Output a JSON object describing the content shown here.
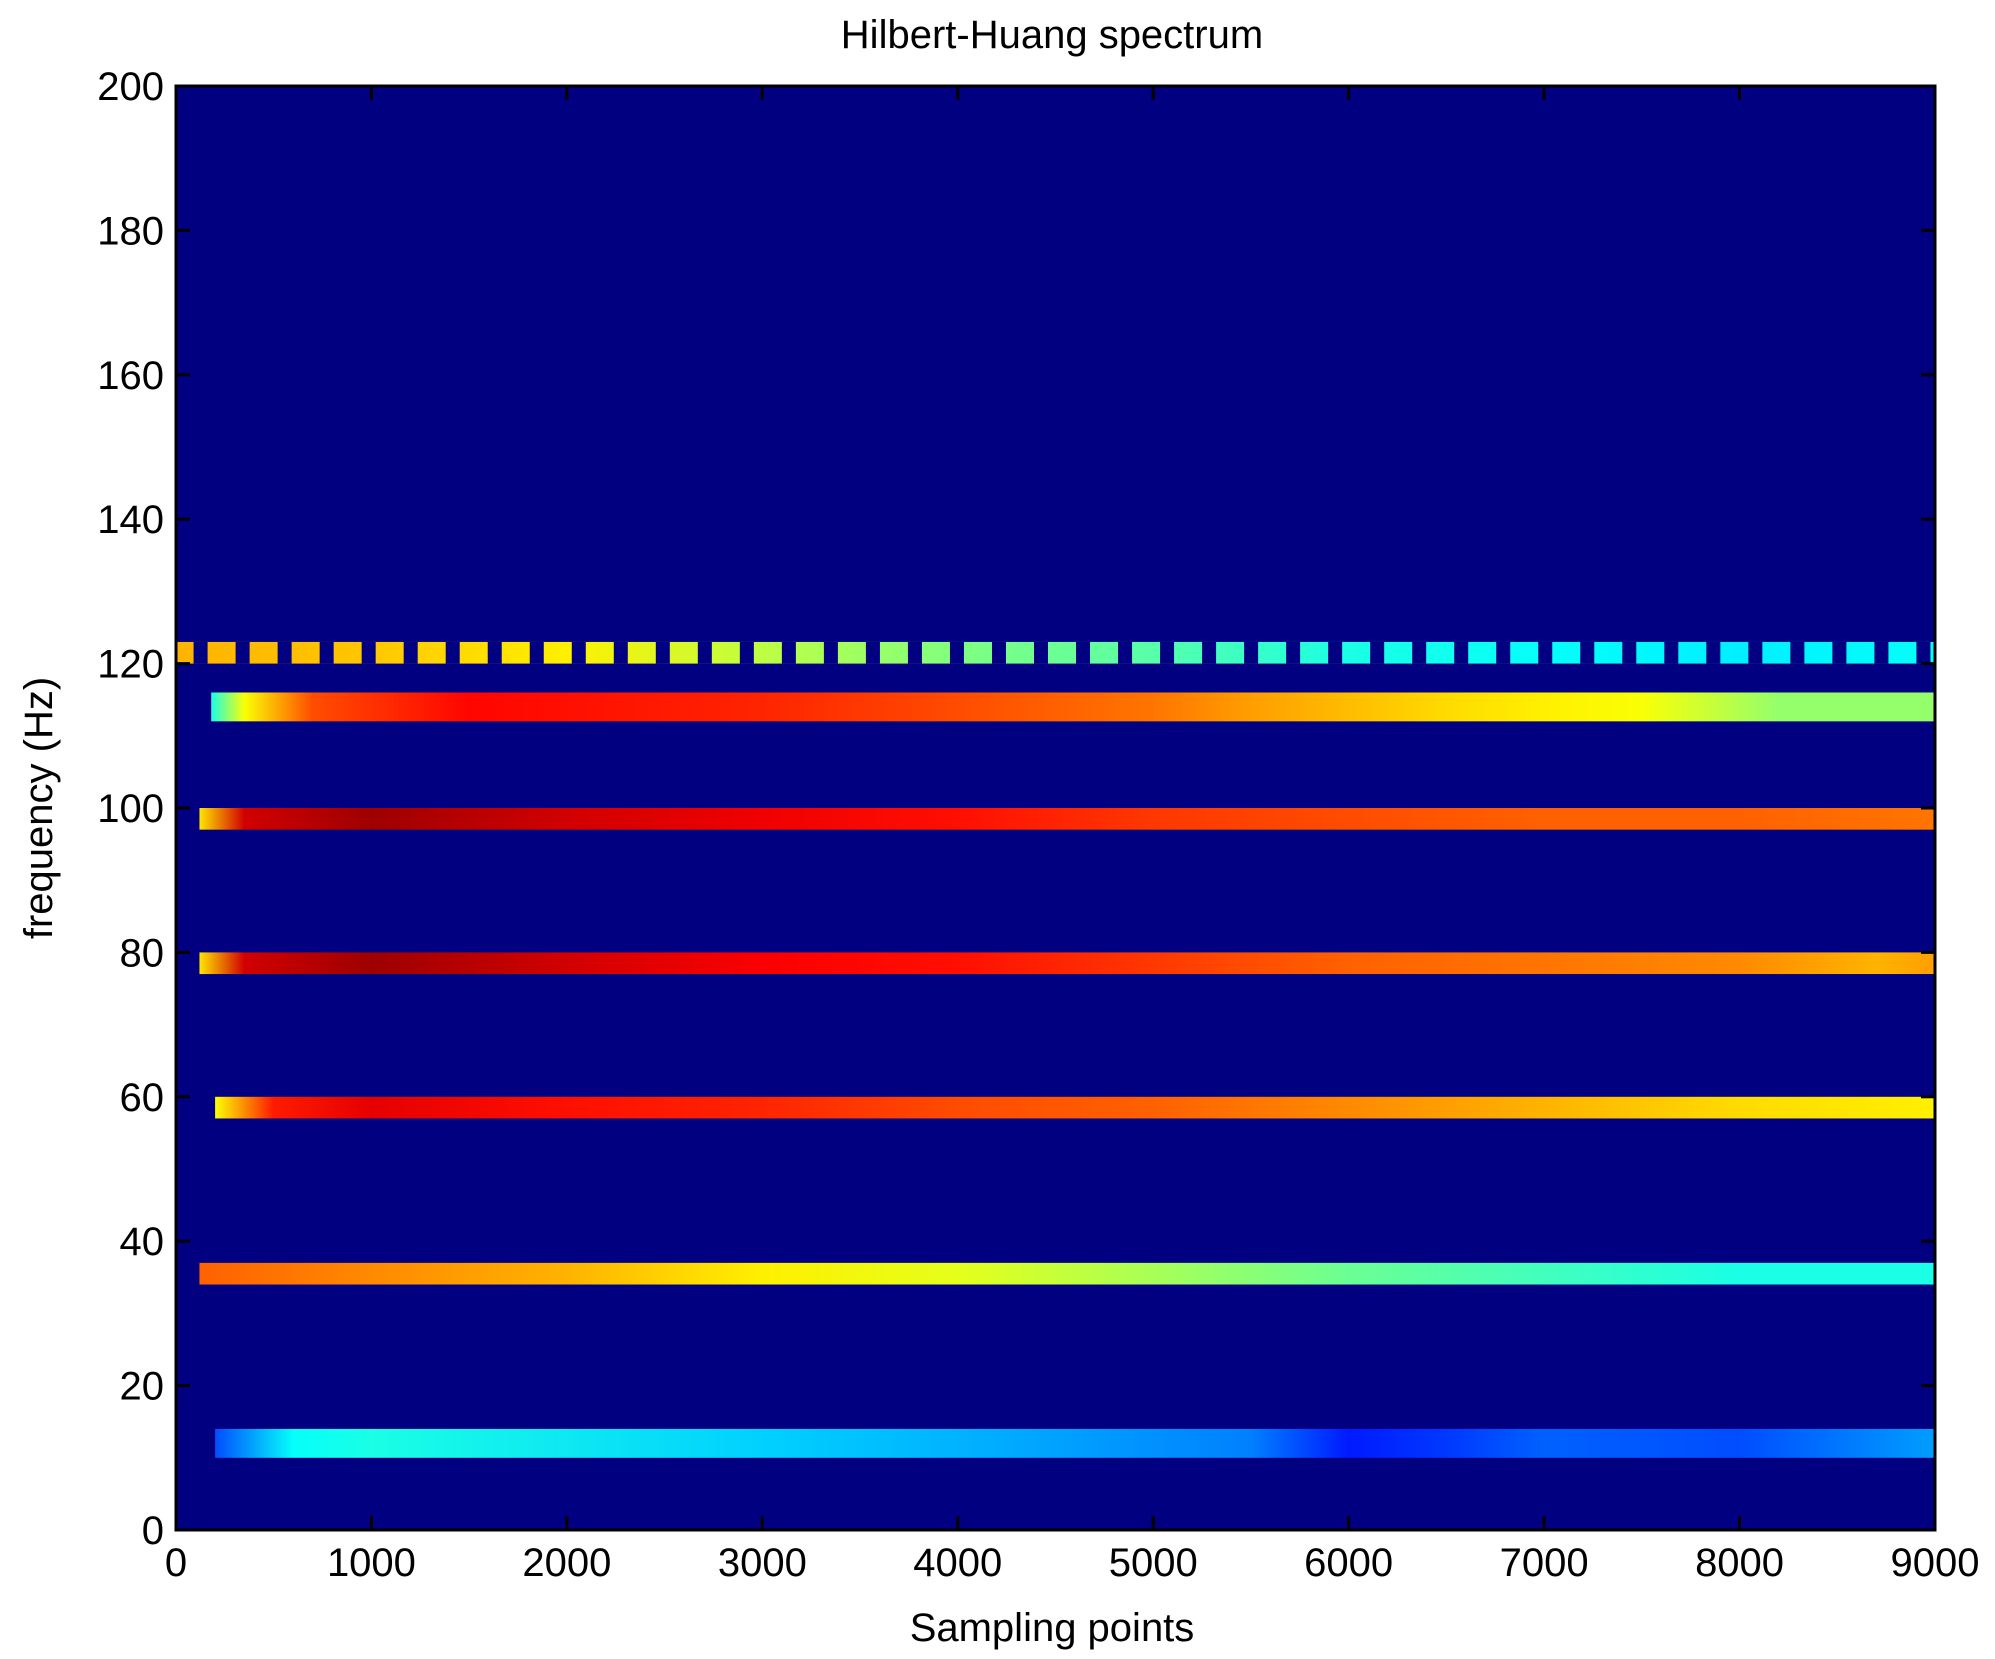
{
  "chart_data": {
    "type": "heatmap",
    "title": "Hilbert-Huang spectrum",
    "xlabel": "Sampling points",
    "ylabel": "frequency (Hz)",
    "xlim": [
      0,
      9000
    ],
    "ylim": [
      0,
      200
    ],
    "x_ticks": [
      "0",
      "1000",
      "2000",
      "3000",
      "4000",
      "5000",
      "6000",
      "7000",
      "8000",
      "9000"
    ],
    "y_ticks": [
      "0",
      "20",
      "40",
      "60",
      "80",
      "100",
      "120",
      "140",
      "160",
      "180",
      "200"
    ],
    "grid": false,
    "colormap": "jet",
    "background_color": "#000080",
    "bands": [
      {
        "freq_low": 10,
        "freq_high": 14,
        "x_start": 200,
        "x_end": 9000,
        "stops": [
          [
            200,
            0.2
          ],
          [
            600,
            0.38
          ],
          [
            1000,
            0.4
          ],
          [
            3000,
            0.33
          ],
          [
            4000,
            0.3
          ],
          [
            5500,
            0.25
          ],
          [
            6000,
            0.15
          ],
          [
            6500,
            0.18
          ],
          [
            7000,
            0.22
          ],
          [
            8000,
            0.2
          ],
          [
            9000,
            0.28
          ]
        ]
      },
      {
        "freq_low": 34,
        "freq_high": 37,
        "x_start": 120,
        "x_end": 9000,
        "stops": [
          [
            120,
            0.78
          ],
          [
            1000,
            0.74
          ],
          [
            2000,
            0.7
          ],
          [
            3000,
            0.64
          ],
          [
            4000,
            0.6
          ],
          [
            5000,
            0.54
          ],
          [
            6000,
            0.48
          ],
          [
            7000,
            0.44
          ],
          [
            8000,
            0.4
          ],
          [
            9000,
            0.4
          ]
        ]
      },
      {
        "freq_low": 57,
        "freq_high": 60,
        "x_start": 200,
        "x_end": 9000,
        "stops": [
          [
            200,
            0.62
          ],
          [
            500,
            0.85
          ],
          [
            1000,
            0.9
          ],
          [
            2000,
            0.86
          ],
          [
            3000,
            0.84
          ],
          [
            4000,
            0.8
          ],
          [
            5000,
            0.78
          ],
          [
            6000,
            0.74
          ],
          [
            7000,
            0.7
          ],
          [
            8000,
            0.66
          ],
          [
            9000,
            0.64
          ]
        ]
      },
      {
        "freq_low": 77,
        "freq_high": 80,
        "x_start": 120,
        "x_end": 9000,
        "stops": [
          [
            120,
            0.65
          ],
          [
            350,
            0.92
          ],
          [
            1000,
            0.97
          ],
          [
            2000,
            0.92
          ],
          [
            3000,
            0.88
          ],
          [
            4000,
            0.86
          ],
          [
            5000,
            0.82
          ],
          [
            6000,
            0.78
          ],
          [
            7000,
            0.76
          ],
          [
            8000,
            0.74
          ],
          [
            8700,
            0.7
          ],
          [
            9000,
            0.72
          ]
        ]
      },
      {
        "freq_low": 97,
        "freq_high": 100,
        "x_start": 120,
        "x_end": 9000,
        "stops": [
          [
            120,
            0.65
          ],
          [
            350,
            0.92
          ],
          [
            1000,
            0.97
          ],
          [
            2000,
            0.92
          ],
          [
            3000,
            0.89
          ],
          [
            4000,
            0.86
          ],
          [
            5000,
            0.82
          ],
          [
            6000,
            0.8
          ],
          [
            7000,
            0.78
          ],
          [
            8000,
            0.78
          ],
          [
            9000,
            0.76
          ]
        ]
      },
      {
        "freq_low": 112,
        "freq_high": 116,
        "x_start": 180,
        "x_end": 9000,
        "stops": [
          [
            180,
            0.4
          ],
          [
            350,
            0.62
          ],
          [
            700,
            0.8
          ],
          [
            1500,
            0.87
          ],
          [
            3000,
            0.84
          ],
          [
            4000,
            0.8
          ],
          [
            5000,
            0.76
          ],
          [
            5500,
            0.72
          ],
          [
            6500,
            0.66
          ],
          [
            7000,
            0.64
          ],
          [
            7500,
            0.62
          ],
          [
            8200,
            0.52
          ],
          [
            9000,
            0.52
          ]
        ]
      },
      {
        "freq_low": 120,
        "freq_high": 123,
        "x_start": 0,
        "x_end": 9000,
        "pattern": "segmented",
        "stops": [
          [
            0,
            0.7
          ],
          [
            1000,
            0.68
          ],
          [
            2000,
            0.64
          ],
          [
            3000,
            0.56
          ],
          [
            4000,
            0.5
          ],
          [
            5000,
            0.46
          ],
          [
            6000,
            0.4
          ],
          [
            7000,
            0.38
          ],
          [
            8000,
            0.36
          ],
          [
            9000,
            0.38
          ]
        ]
      }
    ]
  }
}
